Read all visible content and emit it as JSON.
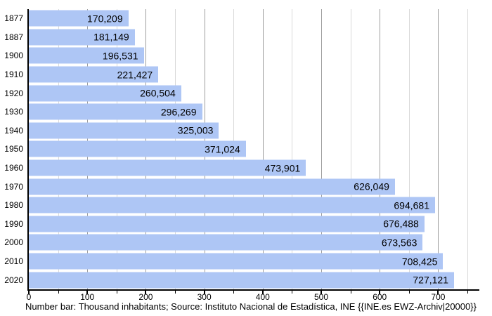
{
  "chart_data": {
    "type": "bar",
    "orientation": "horizontal",
    "title": "",
    "xlabel": "",
    "ylabel": "",
    "categories": [
      "1877",
      "1887",
      "1900",
      "1910",
      "1920",
      "1930",
      "1940",
      "1950",
      "1960",
      "1970",
      "1980",
      "1990",
      "2000",
      "2010",
      "2020"
    ],
    "values": [
      170209,
      181149,
      196531,
      221427,
      260504,
      296269,
      325003,
      371024,
      473901,
      626049,
      694681,
      676488,
      673563,
      708425,
      727121
    ],
    "value_labels": [
      "170,209",
      "181,149",
      "196,531",
      "221,427",
      "260,504",
      "296,269",
      "325,003",
      "371,024",
      "473,901",
      "626,049",
      "694,681",
      "676,488",
      "673,563",
      "708,425",
      "727,121"
    ],
    "axis_unit": "thousand inhabitants",
    "xlim_thousands": [
      0,
      768
    ],
    "x_major_ticks": [
      0,
      100,
      200,
      300,
      400,
      500,
      600,
      700
    ],
    "x_major_tick_labels": [
      "0",
      "100",
      "200",
      "300",
      "400",
      "500",
      "600",
      "700"
    ],
    "x_minor_tick_step": 50,
    "x_last_minor_tick": 750,
    "grid": "vertical gridlines: major every 100, minor every 50",
    "legend": "none"
  },
  "caption": "Number bar: Thousand inhabitants; Source: Instituto Nacional de Estadística, INE {{INE.es EWZ-Archiv|20000}}",
  "colors": {
    "bar_fill": "#aec6f5",
    "grid_major": "#9e9e9e",
    "grid_minor": "#d9d9d9",
    "axis": "#000000",
    "text": "#000000",
    "background": "#ffffff"
  }
}
